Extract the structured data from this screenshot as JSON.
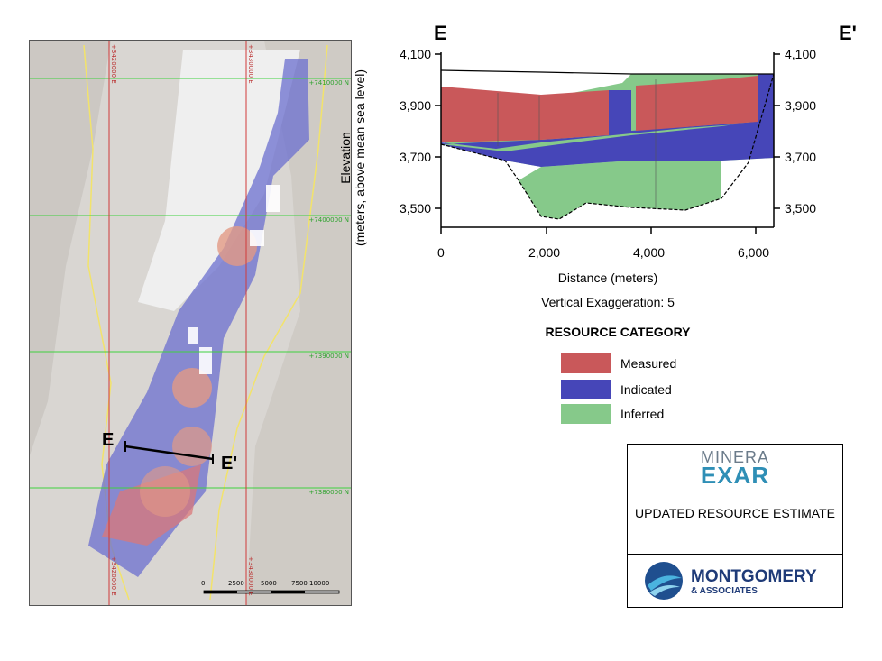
{
  "map": {
    "northing_labels": [
      "+7410000 N",
      "+7400000 N",
      "+7390000 N",
      "+7380000 N"
    ],
    "easting_labels": [
      "+3420000 E",
      "+3430000 E"
    ],
    "section_start_label": "E",
    "section_end_label": "E'",
    "scale_bar": [
      "0",
      "2500",
      "5000",
      "7500",
      "10000"
    ]
  },
  "section": {
    "title_left": "E",
    "title_right": "E'",
    "y_label_line1": "Elevation",
    "y_label_line2": "(meters, above mean sea level)",
    "y_ticks": [
      "4,100",
      "3,900",
      "3,700",
      "3,500"
    ],
    "x_ticks": [
      "0",
      "2,000",
      "4,000",
      "6,000"
    ],
    "x_label": "Distance (meters)",
    "vertical_exaggeration": "Vertical Exaggeration: 5"
  },
  "legend": {
    "title": "RESOURCE CATEGORY",
    "items": [
      {
        "label": "Measured",
        "color": "#c9585a"
      },
      {
        "label": "Indicated",
        "color": "#4646b8"
      },
      {
        "label": "Inferred",
        "color": "#86c98a"
      }
    ]
  },
  "titleblock": {
    "company_top": "MINERA",
    "company_bottom": "EXAR",
    "title": "UPDATED RESOURCE ESTIMATE",
    "consultant": "MONTGOMERY",
    "consultant_sub": "& ASSOCIATES"
  }
}
